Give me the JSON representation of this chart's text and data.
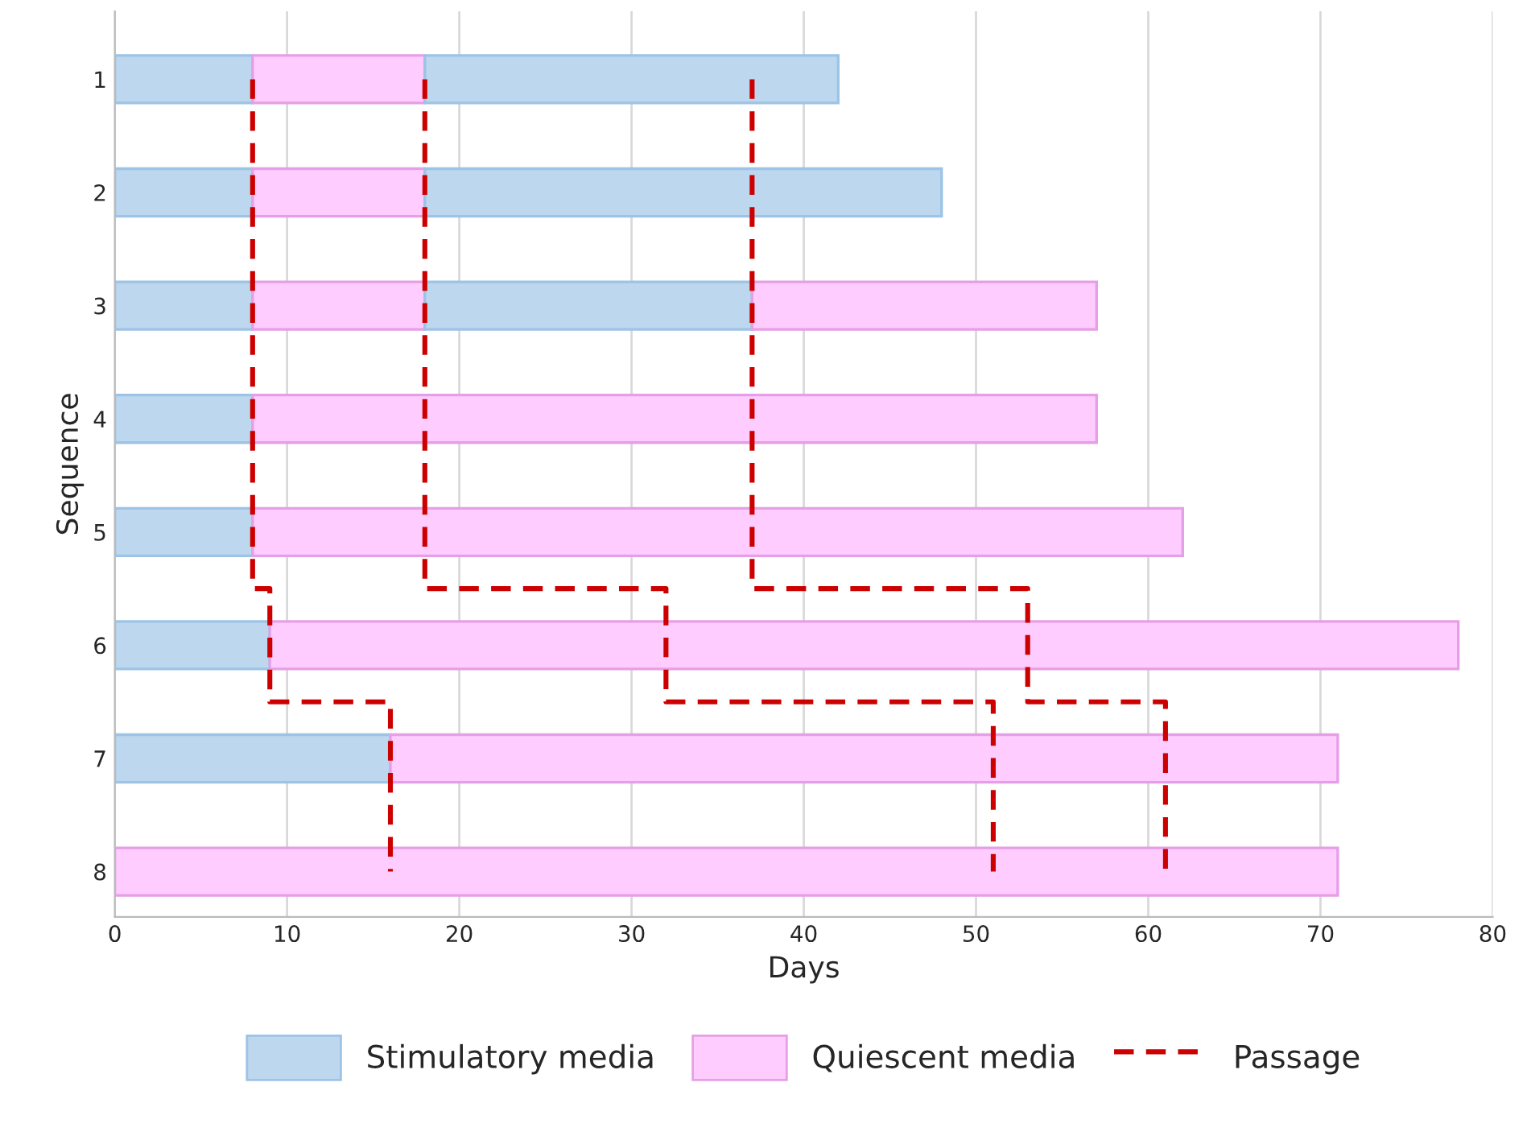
{
  "chart_data": {
    "type": "bar",
    "orientation": "horizontal",
    "stacked": true,
    "xlabel": "Days",
    "ylabel": "Sequence",
    "categories": [
      "1",
      "2",
      "3",
      "4",
      "5",
      "6",
      "7",
      "8"
    ],
    "xlim": [
      0,
      80
    ],
    "xticks": [
      0,
      10,
      20,
      30,
      40,
      50,
      60,
      70,
      80
    ],
    "grid": "x",
    "legend": "bottom",
    "series": [
      {
        "name": "Stimulatory media",
        "color": "#bdd7ee",
        "values": [
          8,
          8,
          8,
          8,
          8,
          9,
          16,
          null
        ]
      },
      {
        "name": "Quiescent media",
        "color": "#ffccff",
        "values": [
          10,
          10,
          10,
          49,
          54,
          69,
          55,
          71
        ]
      },
      {
        "color": "#bdd7ee",
        "values": [
          24,
          30,
          19,
          null,
          null,
          null,
          null,
          null
        ]
      },
      {
        "color": "#ffccff",
        "values": [
          null,
          null,
          20,
          null,
          null,
          null,
          null,
          null
        ]
      },
      {
        "name": "Passage",
        "type": "step",
        "line_style": "dashed",
        "color": "#cc0000",
        "values": [
          8,
          8,
          8,
          8,
          8,
          9,
          16,
          16
        ]
      },
      {
        "type": "step",
        "line_style": "dashed",
        "color": "#cc0000",
        "values": [
          18,
          18,
          18,
          18,
          18,
          32,
          51,
          51
        ]
      },
      {
        "type": "step",
        "line_style": "dashed",
        "color": "#cc0000",
        "values": [
          37,
          37,
          37,
          37,
          37,
          53,
          61,
          61
        ]
      }
    ]
  }
}
